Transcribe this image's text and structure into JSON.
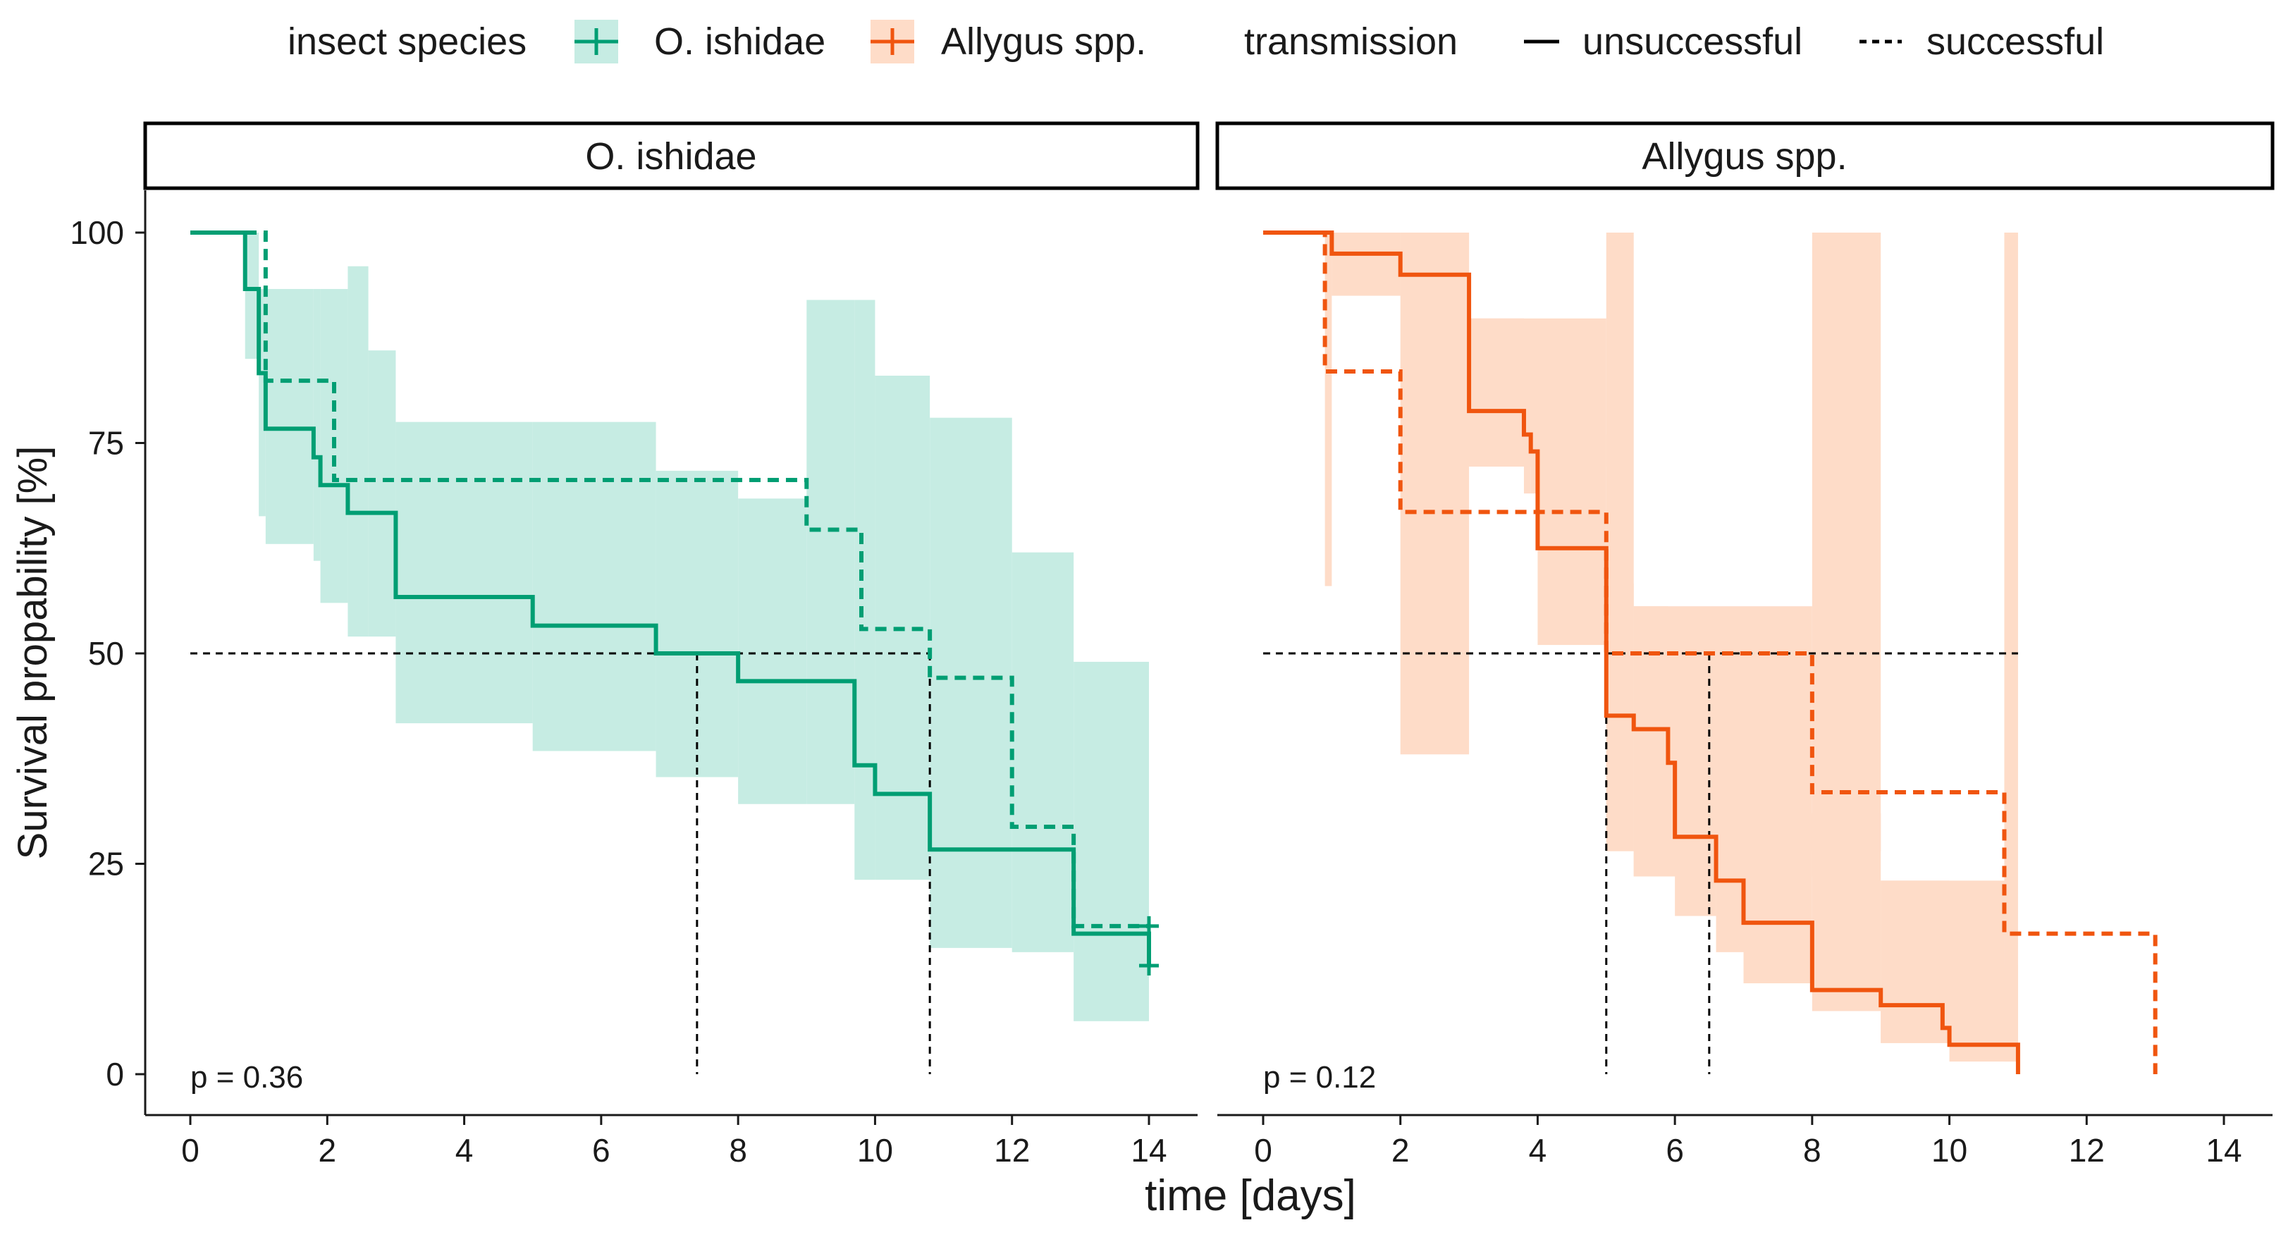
{
  "colors": {
    "O. ishidae": "#009e73",
    "Allygus spp.": "#f0550f",
    "ribbon_O. ishidae": "#c6ece3",
    "ribbon_Allygus spp.": "#fedcc8"
  },
  "legend": {
    "species_title": "insect species",
    "species": [
      "O. ishidae",
      "Allygus spp."
    ],
    "transmission_title": "transmission",
    "transmission": [
      "unsuccessful",
      "successful"
    ]
  },
  "chart_data": {
    "type": "line",
    "xlabel": "time [days]",
    "ylabel": "Survival propability [%]",
    "xlim": [
      0,
      14
    ],
    "ylim": [
      0,
      100
    ],
    "xticks": [
      0,
      2,
      4,
      6,
      8,
      10,
      12,
      14
    ],
    "yticks": [
      0,
      25,
      50,
      75,
      100
    ],
    "legend_position": "top",
    "grid": false,
    "panels": [
      {
        "title": "O. ishidae",
        "pvalue": "p = 0.36",
        "median_reference": {
          "y": 50,
          "x_end": 10.8,
          "drops": [
            7.4,
            10.8
          ]
        },
        "series": [
          {
            "name": "unsuccessful",
            "linetype": "solid",
            "steps": [
              [
                0,
                100
              ],
              [
                0.8,
                93.3
              ],
              [
                1.0,
                83.3
              ],
              [
                1.1,
                76.7
              ],
              [
                1.8,
                73.3
              ],
              [
                1.9,
                70.0
              ],
              [
                2.3,
                66.7
              ],
              [
                3.0,
                56.7
              ],
              [
                5.0,
                53.3
              ],
              [
                6.8,
                50.0
              ],
              [
                8.0,
                46.7
              ],
              [
                9.7,
                36.7
              ],
              [
                10.0,
                33.3
              ],
              [
                10.8,
                26.7
              ],
              [
                12.9,
                16.7
              ],
              [
                14.0,
                16.7
              ],
              [
                14.0,
                12.9
              ]
            ],
            "censor": [
              [
                14.0,
                12.9
              ]
            ],
            "ribbon": [
              [
                0,
                100,
                100
              ],
              [
                0.8,
                100,
                85.0
              ],
              [
                1.0,
                93.3,
                66.3
              ],
              [
                1.1,
                93.3,
                63.0
              ],
              [
                1.8,
                93.3,
                61.0
              ],
              [
                1.9,
                93.3,
                56.0
              ],
              [
                2.3,
                96.0,
                52.0
              ],
              [
                2.6,
                86.0,
                52.0
              ],
              [
                3.0,
                77.5,
                41.7
              ],
              [
                5.0,
                77.5,
                38.4
              ],
              [
                6.8,
                71.7,
                35.3
              ],
              [
                8.0,
                68.4,
                32.1
              ],
              [
                9.0,
                92.0,
                32.1
              ],
              [
                9.7,
                92.0,
                23.1
              ],
              [
                10.0,
                83.0,
                23.1
              ],
              [
                10.8,
                78.0,
                15.0
              ],
              [
                12.0,
                62.0,
                14.5
              ],
              [
                12.9,
                49.0,
                6.3
              ],
              [
                14.0,
                49.0,
                6.3
              ]
            ]
          },
          {
            "name": "successful",
            "linetype": "dashed",
            "steps": [
              [
                0,
                100
              ],
              [
                1.0,
                100
              ],
              [
                1.1,
                82.4
              ],
              [
                2.0,
                82.4
              ],
              [
                2.1,
                70.6
              ],
              [
                9.0,
                70.6
              ],
              [
                9.0,
                64.7
              ],
              [
                9.8,
                64.7
              ],
              [
                9.8,
                52.9
              ],
              [
                10.8,
                52.9
              ],
              [
                10.8,
                47.1
              ],
              [
                12.0,
                47.1
              ],
              [
                12.0,
                29.4
              ],
              [
                12.9,
                29.4
              ],
              [
                12.9,
                17.6
              ],
              [
                14.0,
                17.6
              ]
            ],
            "censor": [
              [
                14.0,
                17.6
              ]
            ]
          }
        ]
      },
      {
        "title": "Allygus spp.",
        "pvalue": "p = 0.12",
        "median_reference": {
          "y": 50,
          "x_end": 11.0,
          "drops": [
            5.0,
            6.5
          ]
        },
        "series": [
          {
            "name": "unsuccessful",
            "linetype": "solid",
            "steps": [
              [
                0,
                100
              ],
              [
                1.0,
                100
              ],
              [
                1.0,
                97.5
              ],
              [
                2.0,
                97.5
              ],
              [
                2.0,
                95.0
              ],
              [
                3.0,
                95.0
              ],
              [
                3.0,
                78.8
              ],
              [
                3.8,
                78.8
              ],
              [
                3.8,
                76.0
              ],
              [
                3.9,
                76.0
              ],
              [
                3.9,
                74.0
              ],
              [
                4.0,
                74.0
              ],
              [
                4.0,
                62.5
              ],
              [
                5.0,
                62.5
              ],
              [
                5.0,
                42.6
              ],
              [
                5.4,
                42.6
              ],
              [
                5.4,
                41.0
              ],
              [
                5.9,
                41.0
              ],
              [
                5.9,
                37.0
              ],
              [
                6.0,
                37.0
              ],
              [
                6.0,
                28.2
              ],
              [
                6.6,
                28.2
              ],
              [
                6.6,
                23.0
              ],
              [
                7.0,
                23.0
              ],
              [
                7.0,
                18.0
              ],
              [
                8.0,
                18.0
              ],
              [
                8.0,
                10.0
              ],
              [
                9.0,
                10.0
              ],
              [
                9.0,
                8.2
              ],
              [
                9.9,
                8.2
              ],
              [
                9.9,
                5.5
              ],
              [
                10.0,
                5.5
              ],
              [
                10.0,
                3.5
              ],
              [
                11.0,
                3.5
              ],
              [
                11.0,
                0
              ]
            ],
            "censor": [],
            "ribbon": [
              [
                0,
                100,
                100
              ],
              [
                1.0,
                100,
                92.5
              ],
              [
                2.0,
                100,
                92.5
              ],
              [
                3.0,
                89.8,
                72.2
              ],
              [
                3.8,
                87.0,
                69.0
              ],
              [
                3.9,
                86.0,
                69.0
              ],
              [
                4.0,
                76.0,
                51.0
              ],
              [
                5.0,
                58.3,
                26.5
              ],
              [
                5.4,
                55.6,
                23.5
              ],
              [
                5.9,
                50.0,
                23.5
              ],
              [
                6.0,
                42.5,
                18.8
              ],
              [
                6.6,
                42.5,
                14.5
              ],
              [
                7.0,
                31.0,
                10.8
              ],
              [
                8.0,
                31.0,
                7.5
              ],
              [
                9.0,
                23.0,
                3.7
              ],
              [
                9.9,
                23.0,
                3.7
              ],
              [
                10.0,
                13.0,
                1.5
              ],
              [
                11.0,
                13.0,
                1.5
              ]
            ]
          },
          {
            "name": "successful",
            "linetype": "dashed",
            "steps": [
              [
                0,
                100
              ],
              [
                0.9,
                100
              ],
              [
                0.9,
                83.5
              ],
              [
                2.0,
                83.5
              ],
              [
                2.0,
                66.8
              ],
              [
                5.0,
                66.8
              ],
              [
                5.0,
                50.0
              ],
              [
                8.0,
                50.0
              ],
              [
                8.0,
                33.5
              ],
              [
                10.8,
                33.5
              ],
              [
                10.8,
                16.7
              ],
              [
                13.0,
                16.7
              ],
              [
                13.0,
                0
              ]
            ],
            "censor": [],
            "ribbon": [
              [
                0,
                100,
                100
              ],
              [
                0.9,
                100,
                58.0
              ],
              [
                1.0,
                100,
                92.5
              ],
              [
                2.0,
                100,
                38.0
              ],
              [
                3.0,
                100,
                38.0
              ],
              [
                3.0,
                89.8,
                72.2
              ],
              [
                5.0,
                100,
                26.5
              ],
              [
                5.4,
                55.6,
                23.5
              ],
              [
                8.0,
                100,
                26.5
              ],
              [
                9.0,
                23.0,
                3.7
              ],
              [
                10.8,
                100,
                1.5
              ],
              [
                11.0,
                13.0,
                1.5
              ]
            ]
          }
        ]
      }
    ]
  }
}
